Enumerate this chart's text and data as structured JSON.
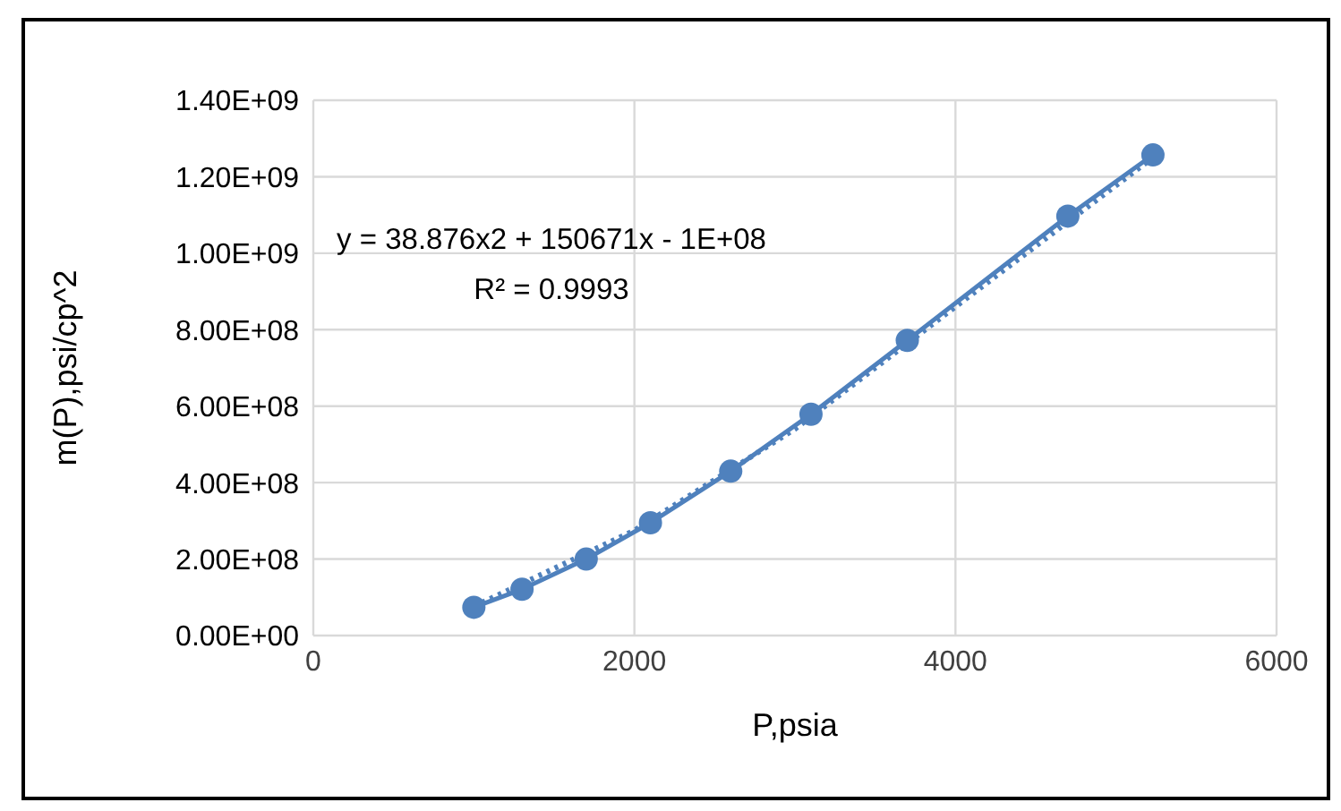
{
  "chart_data": {
    "type": "line",
    "xlabel": "P,psia",
    "ylabel": "m(P),psi/cp^2",
    "xlim": [
      0,
      6000
    ],
    "xticks": [
      0,
      2000,
      4000,
      6000
    ],
    "ylim": [
      0,
      1400000000
    ],
    "yticks": [
      {
        "value": 0,
        "label": "0.00E+00"
      },
      {
        "value": 200000000,
        "label": "2.00E+08"
      },
      {
        "value": 400000000,
        "label": "4.00E+08"
      },
      {
        "value": 600000000,
        "label": "6.00E+08"
      },
      {
        "value": 800000000,
        "label": "8.00E+08"
      },
      {
        "value": 1000000000,
        "label": "1.00E+09"
      },
      {
        "value": 1200000000,
        "label": "1.20E+09"
      },
      {
        "value": 1400000000,
        "label": "1.40E+09"
      }
    ],
    "grid": true,
    "series": [
      {
        "color": "#4f81bd",
        "marker": "circle",
        "line_style": "solid",
        "x": [
          1000,
          1300,
          1700,
          2100,
          2600,
          3100,
          3700,
          4700,
          5230
        ],
        "values": [
          74000000,
          121000000,
          200000000,
          295000000,
          430000000,
          579000000,
          772000000,
          1097000000,
          1257000000
        ]
      },
      {
        "color": "#4f81bd",
        "marker": "none",
        "line_style": "dotted",
        "x": [
          1000,
          2000,
          3000,
          4000,
          5230
        ],
        "values": [
          76000000,
          275000000,
          540000000,
          860000000,
          1250000000
        ]
      }
    ],
    "annotations": [
      "y = 38.876x2 + 150671x - 1E+08",
      "R² = 0.9993"
    ]
  }
}
